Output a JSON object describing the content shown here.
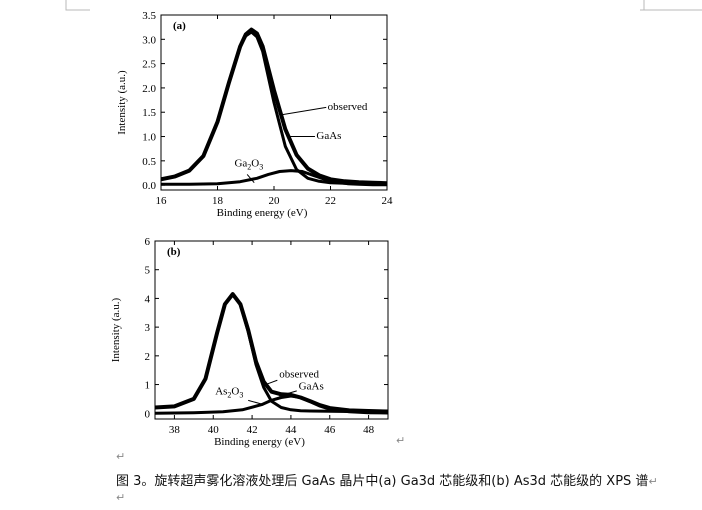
{
  "caption": "图 3。旋转超声雾化溶液处理后 GaAs 晶片中(a) Ga3d 芯能级和(b) As3d 芯能级的 XPS 谱",
  "paragraph_mark": "↵",
  "chart_data": [
    {
      "type": "line",
      "panel_label": "(a)",
      "xlabel": "Binding energy (eV)",
      "ylabel": "Intensity (a.u.)",
      "xlim": [
        16,
        24
      ],
      "ylim": [
        -0.1,
        3.5
      ],
      "xticks": [
        16,
        18,
        20,
        22,
        24
      ],
      "yticks": [
        0.0,
        0.5,
        1.0,
        1.5,
        2.0,
        2.5,
        3.0,
        3.5
      ],
      "ytick_labels": [
        "0.0",
        "0.5",
        "1.0",
        "1.5",
        "2.0",
        "2.5",
        "3.0",
        "3.5"
      ],
      "grid": false,
      "series": [
        {
          "name": "observed",
          "x": [
            16.0,
            16.5,
            17.0,
            17.5,
            18.0,
            18.4,
            18.8,
            19.0,
            19.2,
            19.4,
            19.6,
            20.0,
            20.4,
            20.8,
            21.2,
            21.6,
            22.0,
            22.5,
            23.0,
            23.5,
            24.0
          ],
          "y": [
            0.12,
            0.18,
            0.3,
            0.6,
            1.3,
            2.1,
            2.85,
            3.1,
            3.2,
            3.12,
            2.85,
            1.95,
            1.15,
            0.62,
            0.34,
            0.2,
            0.12,
            0.08,
            0.06,
            0.05,
            0.04
          ]
        },
        {
          "name": "GaAs",
          "x": [
            16.0,
            16.5,
            17.0,
            17.5,
            18.0,
            18.4,
            18.8,
            19.0,
            19.2,
            19.4,
            19.6,
            20.0,
            20.4,
            20.8,
            21.2,
            21.6,
            22.0,
            22.5,
            23.0,
            23.5,
            24.0
          ],
          "y": [
            0.12,
            0.18,
            0.3,
            0.6,
            1.3,
            2.1,
            2.85,
            3.07,
            3.15,
            3.05,
            2.75,
            1.7,
            0.8,
            0.32,
            0.14,
            0.08,
            0.05,
            0.04,
            0.03,
            0.03,
            0.03
          ]
        },
        {
          "name": "Ga2O3",
          "x": [
            16.0,
            17.0,
            18.0,
            18.8,
            19.4,
            19.8,
            20.2,
            20.6,
            21.0,
            21.4,
            21.8,
            22.2,
            22.6,
            23.0,
            23.5,
            24.0
          ],
          "y": [
            0.02,
            0.02,
            0.03,
            0.07,
            0.14,
            0.22,
            0.28,
            0.3,
            0.28,
            0.2,
            0.12,
            0.06,
            0.03,
            0.02,
            0.01,
            0.01
          ]
        }
      ],
      "annotations": [
        {
          "text": "observed",
          "x": 21.9,
          "y": 1.55
        },
        {
          "text": "GaAs",
          "x": 21.5,
          "y": 0.95
        },
        {
          "text": "Ga",
          "sub": "2",
          "after": "O",
          "sub2": "3",
          "x": 18.6,
          "y": 0.38
        }
      ]
    },
    {
      "type": "line",
      "panel_label": "(b)",
      "xlabel": "Binding energy (eV)",
      "ylabel": "Intensity (a.u.)",
      "xlim": [
        37,
        49
      ],
      "ylim": [
        -0.2,
        6
      ],
      "xticks": [
        38,
        40,
        42,
        44,
        46,
        48
      ],
      "yticks": [
        0,
        1,
        2,
        3,
        4,
        5,
        6
      ],
      "ytick_labels": [
        "0",
        "1",
        "2",
        "3",
        "4",
        "5",
        "6"
      ],
      "grid": false,
      "series": [
        {
          "name": "observed",
          "x": [
            37.0,
            38.0,
            39.0,
            39.6,
            40.2,
            40.6,
            41.0,
            41.4,
            41.8,
            42.2,
            42.6,
            43.0,
            43.5,
            44.0,
            44.5,
            45.0,
            45.5,
            46.0,
            47.0,
            48.0,
            49.0
          ],
          "y": [
            0.2,
            0.24,
            0.5,
            1.2,
            2.8,
            3.8,
            4.15,
            3.8,
            2.9,
            1.8,
            1.1,
            0.75,
            0.66,
            0.64,
            0.55,
            0.42,
            0.28,
            0.18,
            0.1,
            0.08,
            0.06
          ]
        },
        {
          "name": "GaAs",
          "x": [
            37.0,
            38.0,
            39.0,
            39.6,
            40.2,
            40.6,
            41.0,
            41.4,
            41.8,
            42.2,
            42.6,
            43.0,
            43.5,
            44.0,
            44.5,
            45.0,
            46.0,
            47.0,
            48.0,
            49.0
          ],
          "y": [
            0.2,
            0.24,
            0.5,
            1.2,
            2.8,
            3.8,
            4.15,
            3.78,
            2.85,
            1.7,
            0.9,
            0.42,
            0.2,
            0.12,
            0.09,
            0.08,
            0.07,
            0.06,
            0.05,
            0.05
          ]
        },
        {
          "name": "As2O3",
          "x": [
            37.0,
            39.0,
            40.5,
            41.5,
            42.5,
            43.0,
            43.5,
            44.0,
            44.5,
            45.0,
            45.5,
            46.0,
            47.0,
            48.0,
            49.0
          ],
          "y": [
            0.0,
            0.02,
            0.05,
            0.12,
            0.3,
            0.45,
            0.55,
            0.6,
            0.55,
            0.4,
            0.25,
            0.14,
            0.05,
            0.02,
            0.01
          ]
        }
      ],
      "annotations": [
        {
          "text": "observed",
          "x": 43.4,
          "y": 1.25
        },
        {
          "text": "GaAs",
          "x": 44.4,
          "y": 0.82
        },
        {
          "text": "As",
          "sub": "2",
          "after": "O",
          "sub2": "3",
          "x": 40.1,
          "y": 0.65
        }
      ]
    }
  ]
}
